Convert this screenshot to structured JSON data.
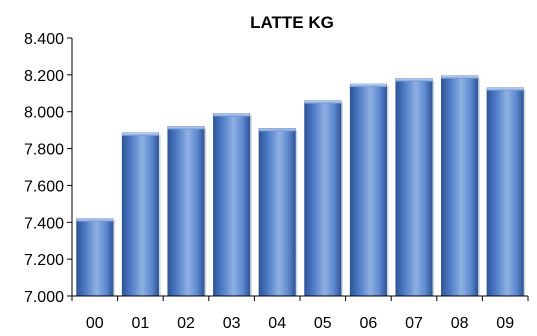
{
  "chart_data": {
    "type": "bar",
    "title": "LATTE KG",
    "xlabel": "",
    "ylabel": "",
    "categories": [
      "00",
      "01",
      "02",
      "03",
      "04",
      "05",
      "06",
      "07",
      "08",
      "09"
    ],
    "values": [
      7420,
      7885,
      7920,
      7990,
      7910,
      8060,
      8150,
      8180,
      8195,
      8130
    ],
    "ylim": [
      7000,
      8400
    ],
    "yticks": [
      7000,
      7200,
      7400,
      7600,
      7800,
      8000,
      8200,
      8400
    ],
    "ytick_labels": [
      "7.000",
      "7.200",
      "7.400",
      "7.600",
      "7.800",
      "8.000",
      "8.200",
      "8.400"
    ],
    "grid": false,
    "legend": "none",
    "colors": {
      "bar_light": "#8fb0e2",
      "bar_main": "#4a78c4",
      "bar_dark": "#2f5597",
      "axis": "#000000"
    }
  }
}
